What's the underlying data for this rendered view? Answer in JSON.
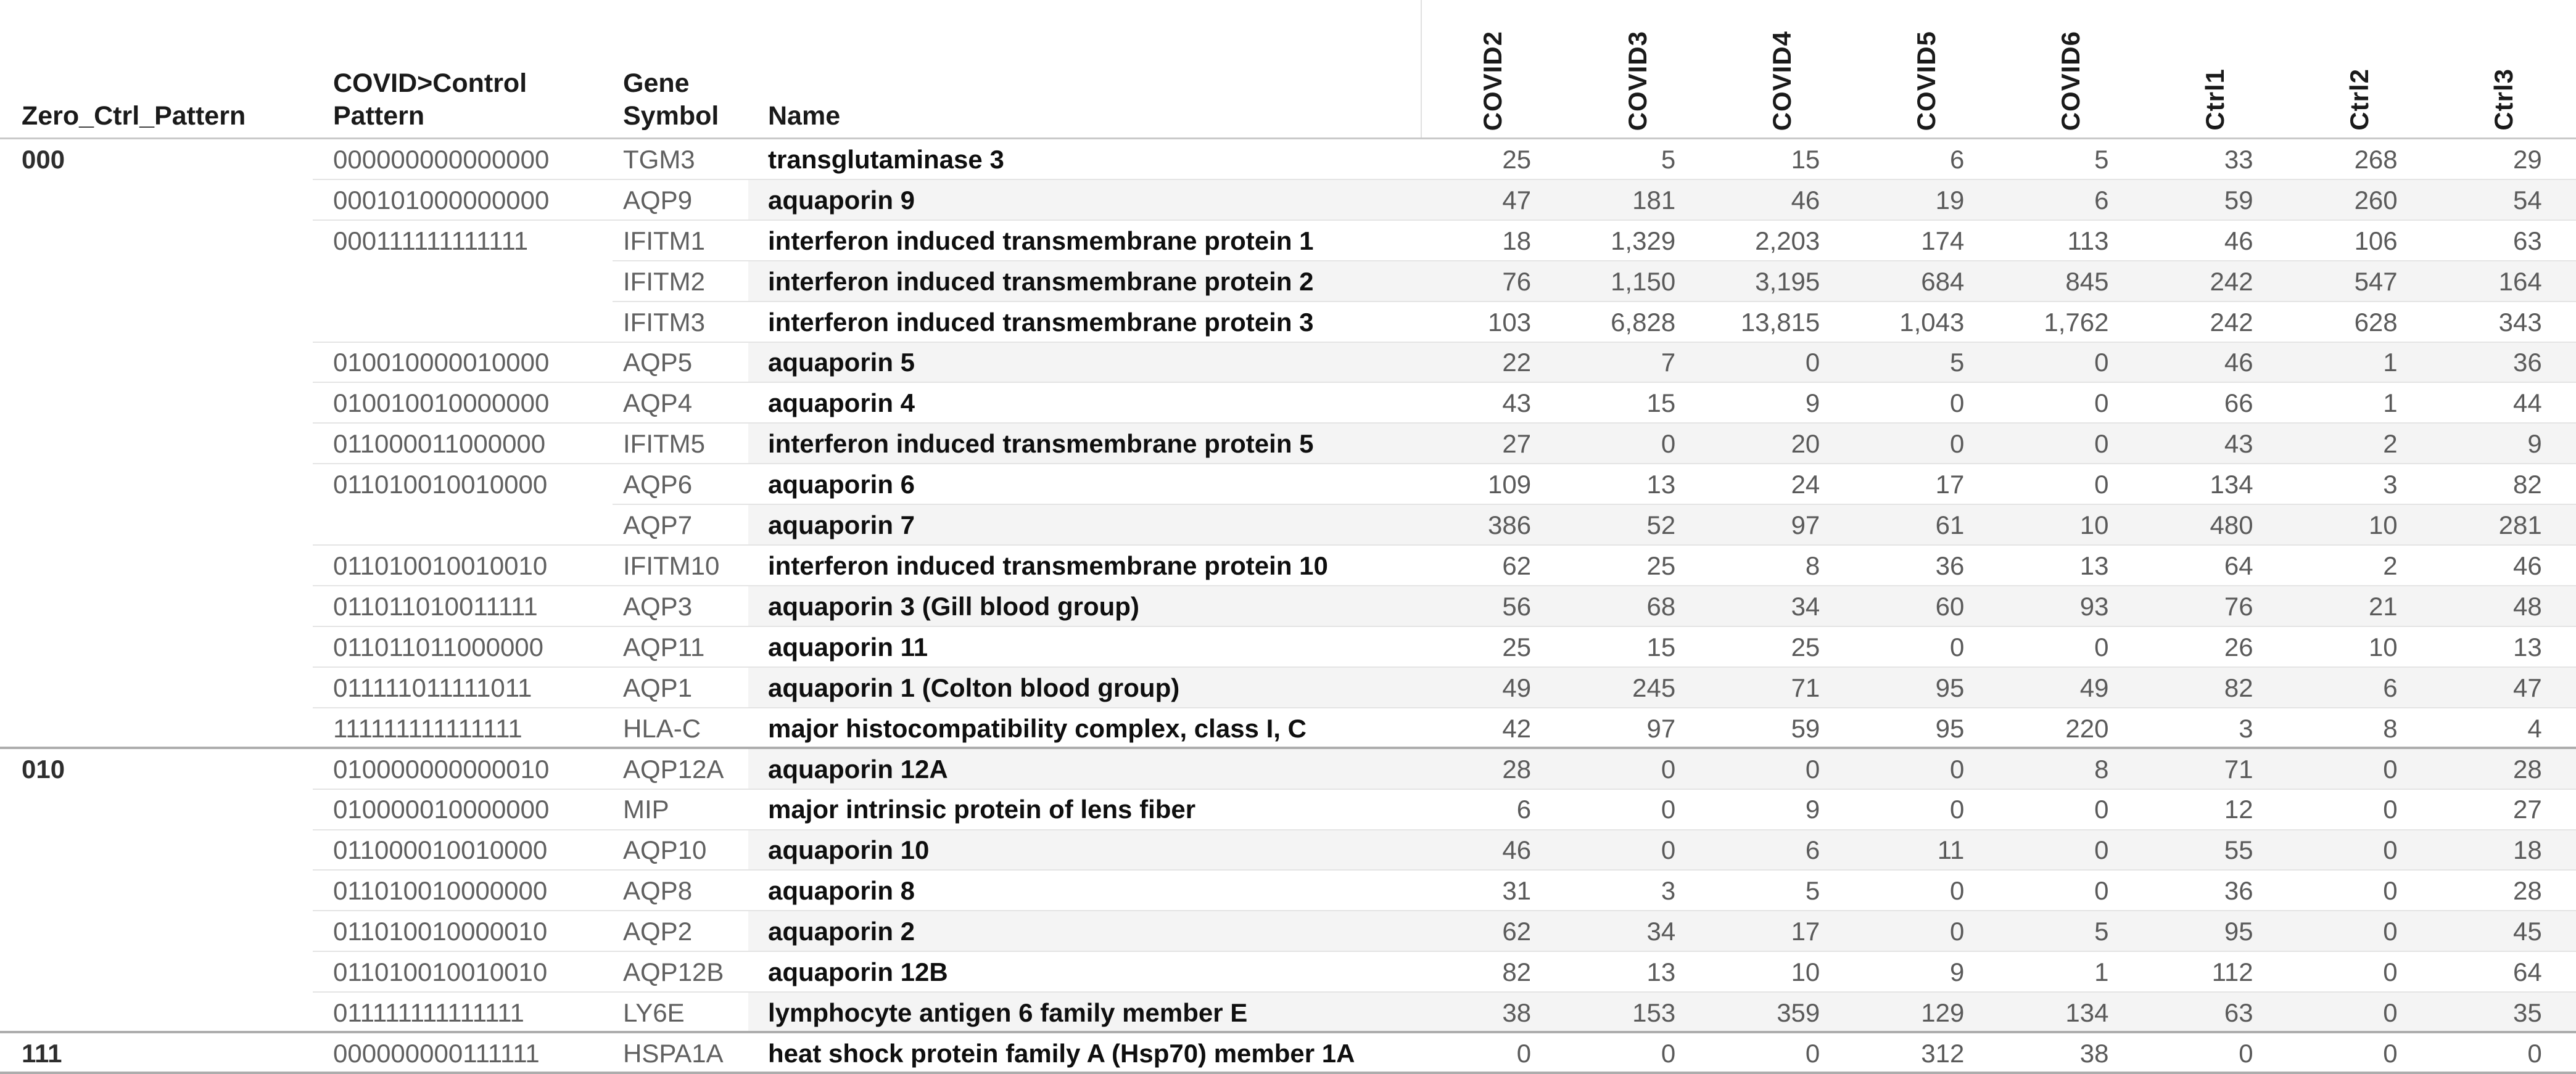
{
  "header": {
    "columns": [
      {
        "label": "Zero_Ctrl_Pattern"
      },
      {
        "label": "COVID>Control\nPattern"
      },
      {
        "label": "Gene\nSymbol"
      },
      {
        "label": "Name"
      }
    ],
    "samples": [
      "COVID2",
      "COVID3",
      "COVID4",
      "COVID5",
      "COVID6",
      "Ctrl1",
      "Ctrl2",
      "Ctrl3"
    ]
  },
  "rows": [
    {
      "group": "000",
      "pattern": "000000000000000",
      "symbol": "TGM3",
      "name": "transglutaminase 3",
      "values": [
        "25",
        "5",
        "15",
        "6",
        "5",
        "33",
        "268",
        "29"
      ],
      "band": false,
      "sep": "pattern"
    },
    {
      "group": "",
      "pattern": "000101000000000",
      "symbol": "AQP9",
      "name": "aquaporin 9",
      "values": [
        "47",
        "181",
        "46",
        "19",
        "6",
        "59",
        "260",
        "54"
      ],
      "band": true,
      "sep": "pattern"
    },
    {
      "group": "",
      "pattern": "000111111111111",
      "symbol": "IFITM1",
      "name": "interferon induced transmembrane protein 1",
      "values": [
        "18",
        "1,329",
        "2,203",
        "174",
        "113",
        "46",
        "106",
        "63"
      ],
      "band": false,
      "sep": "gene"
    },
    {
      "group": "",
      "pattern": "",
      "symbol": "IFITM2",
      "name": "interferon induced transmembrane protein 2",
      "values": [
        "76",
        "1,150",
        "3,195",
        "684",
        "845",
        "242",
        "547",
        "164"
      ],
      "band": true,
      "sep": "gene"
    },
    {
      "group": "",
      "pattern": "",
      "symbol": "IFITM3",
      "name": "interferon induced transmembrane protein 3",
      "values": [
        "103",
        "6,828",
        "13,815",
        "1,043",
        "1,762",
        "242",
        "628",
        "343"
      ],
      "band": false,
      "sep": "pattern"
    },
    {
      "group": "",
      "pattern": "010010000010000",
      "symbol": "AQP5",
      "name": "aquaporin 5",
      "values": [
        "22",
        "7",
        "0",
        "5",
        "0",
        "46",
        "1",
        "36"
      ],
      "band": true,
      "sep": "pattern"
    },
    {
      "group": "",
      "pattern": "010010010000000",
      "symbol": "AQP4",
      "name": "aquaporin 4",
      "values": [
        "43",
        "15",
        "9",
        "0",
        "0",
        "66",
        "1",
        "44"
      ],
      "band": false,
      "sep": "pattern"
    },
    {
      "group": "",
      "pattern": "011000011000000",
      "symbol": "IFITM5",
      "name": "interferon induced transmembrane protein 5",
      "values": [
        "27",
        "0",
        "20",
        "0",
        "0",
        "43",
        "2",
        "9"
      ],
      "band": true,
      "sep": "pattern"
    },
    {
      "group": "",
      "pattern": "011010010010000",
      "symbol": "AQP6",
      "name": "aquaporin 6",
      "values": [
        "109",
        "13",
        "24",
        "17",
        "0",
        "134",
        "3",
        "82"
      ],
      "band": false,
      "sep": "gene"
    },
    {
      "group": "",
      "pattern": "",
      "symbol": "AQP7",
      "name": "aquaporin 7",
      "values": [
        "386",
        "52",
        "97",
        "61",
        "10",
        "480",
        "10",
        "281"
      ],
      "band": true,
      "sep": "pattern"
    },
    {
      "group": "",
      "pattern": "011010010010010",
      "symbol": "IFITM10",
      "name": "interferon induced transmembrane protein 10",
      "values": [
        "62",
        "25",
        "8",
        "36",
        "13",
        "64",
        "2",
        "46"
      ],
      "band": false,
      "sep": "pattern"
    },
    {
      "group": "",
      "pattern": "011011010011111",
      "symbol": "AQP3",
      "name": "aquaporin 3 (Gill blood group)",
      "values": [
        "56",
        "68",
        "34",
        "60",
        "93",
        "76",
        "21",
        "48"
      ],
      "band": true,
      "sep": "pattern"
    },
    {
      "group": "",
      "pattern": "011011011000000",
      "symbol": "AQP11",
      "name": "aquaporin 11",
      "values": [
        "25",
        "15",
        "25",
        "0",
        "0",
        "26",
        "10",
        "13"
      ],
      "band": false,
      "sep": "pattern"
    },
    {
      "group": "",
      "pattern": "011111011111011",
      "symbol": "AQP1",
      "name": "aquaporin 1 (Colton blood group)",
      "values": [
        "49",
        "245",
        "71",
        "95",
        "49",
        "82",
        "6",
        "47"
      ],
      "band": true,
      "sep": "pattern"
    },
    {
      "group": "",
      "pattern": "111111111111111",
      "symbol": "HLA-C",
      "name": "major histocompatibility complex, class I, C",
      "values": [
        "42",
        "97",
        "59",
        "95",
        "220",
        "3",
        "8",
        "4"
      ],
      "band": false,
      "sep": "group"
    },
    {
      "group": "010",
      "pattern": "010000000000010",
      "symbol": "AQP12A",
      "name": "aquaporin 12A",
      "values": [
        "28",
        "0",
        "0",
        "0",
        "8",
        "71",
        "0",
        "28"
      ],
      "band": true,
      "sep": "pattern"
    },
    {
      "group": "",
      "pattern": "010000010000000",
      "symbol": "MIP",
      "name": "major intrinsic protein of lens fiber",
      "values": [
        "6",
        "0",
        "9",
        "0",
        "0",
        "12",
        "0",
        "27"
      ],
      "band": false,
      "sep": "pattern"
    },
    {
      "group": "",
      "pattern": "011000010010000",
      "symbol": "AQP10",
      "name": "aquaporin 10",
      "values": [
        "46",
        "0",
        "6",
        "11",
        "0",
        "55",
        "0",
        "18"
      ],
      "band": true,
      "sep": "pattern"
    },
    {
      "group": "",
      "pattern": "011010010000000",
      "symbol": "AQP8",
      "name": "aquaporin 8",
      "values": [
        "31",
        "3",
        "5",
        "0",
        "0",
        "36",
        "0",
        "28"
      ],
      "band": false,
      "sep": "pattern"
    },
    {
      "group": "",
      "pattern": "011010010000010",
      "symbol": "AQP2",
      "name": "aquaporin 2",
      "values": [
        "62",
        "34",
        "17",
        "0",
        "5",
        "95",
        "0",
        "45"
      ],
      "band": true,
      "sep": "pattern"
    },
    {
      "group": "",
      "pattern": "011010010010010",
      "symbol": "AQP12B",
      "name": "aquaporin 12B",
      "values": [
        "82",
        "13",
        "10",
        "9",
        "1",
        "112",
        "0",
        "64"
      ],
      "band": false,
      "sep": "pattern"
    },
    {
      "group": "",
      "pattern": "011111111111111",
      "symbol": "LY6E",
      "name": "lymphocyte antigen 6 family member E",
      "values": [
        "38",
        "153",
        "359",
        "129",
        "134",
        "63",
        "0",
        "35"
      ],
      "band": true,
      "sep": "group"
    },
    {
      "group": "111",
      "pattern": "000000000111111",
      "symbol": "HSPA1A",
      "name": "heat shock protein family A (Hsp70) member 1A",
      "values": [
        "0",
        "0",
        "0",
        "312",
        "38",
        "0",
        "0",
        "0"
      ],
      "band": false,
      "sep": "group"
    }
  ],
  "colors": {
    "header_text": "#1a1a1a",
    "body_text_secondary": "#5c5c5c",
    "name_text": "#0f0f0f",
    "row_band": "#f4f4f4",
    "separator_thin": "#e4e4e4",
    "separator_group": "#adadad",
    "header_underline": "#c9c9c9"
  }
}
